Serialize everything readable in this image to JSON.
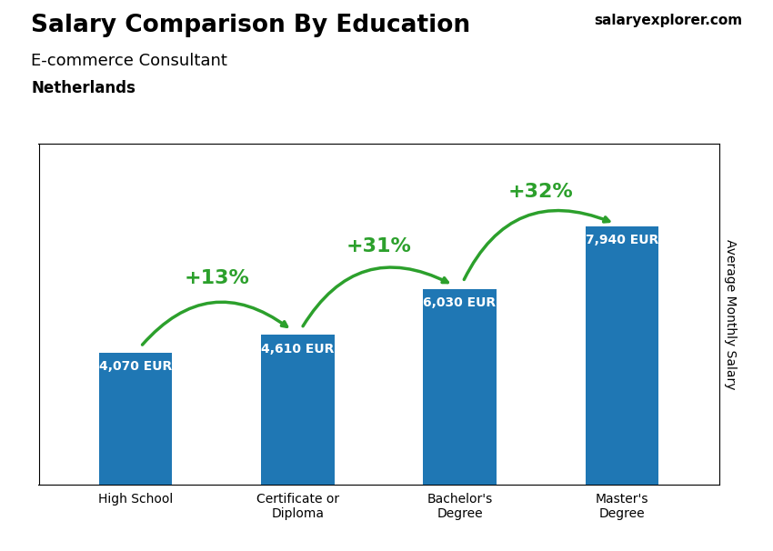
{
  "chart_data": {
    "type": "bar",
    "title": "Salary Comparison By Education",
    "subtitle": [
      "E-commerce Consultant",
      "Netherlands"
    ],
    "ylabel": "Average Monthly Salary",
    "categories": [
      "High School",
      "Certificate or\nDiploma",
      "Bachelor's\nDegree",
      "Master's\nDegree"
    ],
    "values": [
      4070,
      4610,
      6030,
      7940
    ],
    "value_labels": [
      "4,070 EUR",
      "4,610 EUR",
      "6,030 EUR",
      "7,940 EUR"
    ],
    "data_labels": true,
    "ylim": [
      0,
      10500
    ],
    "tick_labels": "x",
    "grid": false,
    "annotations": [
      {
        "text": "+13%",
        "between": [
          "High School",
          "Certificate or\nDiploma"
        ]
      },
      {
        "text": "+31%",
        "between": [
          "Certificate or\nDiploma",
          "Bachelor's\nDegree"
        ]
      },
      {
        "text": "+32%",
        "between": [
          "Bachelor's\nDegree",
          "Master's\nDegree"
        ]
      },
      {
        "text": "salaryexplorer.com"
      }
    ]
  }
}
